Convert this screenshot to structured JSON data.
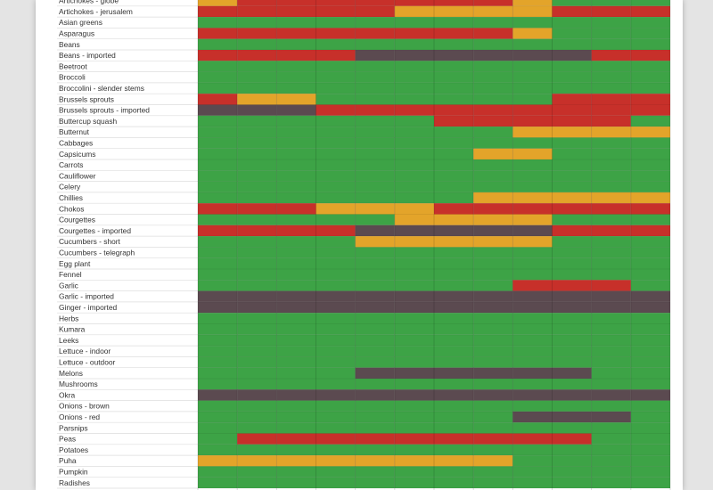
{
  "chart_data": {
    "type": "heatmap",
    "title": "",
    "columns": 12,
    "colors": {
      "g": "#3da346",
      "y": "#e3a42a",
      "r": "#c7302a",
      "d": "#5b4a50"
    },
    "rows": [
      {
        "label": "Artichokes - globe",
        "cells": [
          "y",
          "r",
          "r",
          "r",
          "r",
          "r",
          "r",
          "r",
          "y",
          "g",
          "g",
          "g"
        ]
      },
      {
        "label": "Artichokes - jerusalem",
        "cells": [
          "r",
          "r",
          "r",
          "r",
          "r",
          "y",
          "y",
          "y",
          "y",
          "r",
          "r",
          "r"
        ]
      },
      {
        "label": "Asian greens",
        "cells": [
          "g",
          "g",
          "g",
          "g",
          "g",
          "g",
          "g",
          "g",
          "g",
          "g",
          "g",
          "g"
        ]
      },
      {
        "label": "Asparagus",
        "cells": [
          "r",
          "r",
          "r",
          "r",
          "r",
          "r",
          "r",
          "r",
          "y",
          "g",
          "g",
          "g"
        ]
      },
      {
        "label": "Beans",
        "cells": [
          "g",
          "g",
          "g",
          "g",
          "g",
          "g",
          "g",
          "g",
          "g",
          "g",
          "g",
          "g"
        ]
      },
      {
        "label": "Beans - imported",
        "cells": [
          "r",
          "r",
          "r",
          "r",
          "d",
          "d",
          "d",
          "d",
          "d",
          "d",
          "r",
          "r"
        ]
      },
      {
        "label": "Beetroot",
        "cells": [
          "g",
          "g",
          "g",
          "g",
          "g",
          "g",
          "g",
          "g",
          "g",
          "g",
          "g",
          "g"
        ]
      },
      {
        "label": "Broccoli",
        "cells": [
          "g",
          "g",
          "g",
          "g",
          "g",
          "g",
          "g",
          "g",
          "g",
          "g",
          "g",
          "g"
        ]
      },
      {
        "label": "Broccolini - slender stems",
        "cells": [
          "g",
          "g",
          "g",
          "g",
          "g",
          "g",
          "g",
          "g",
          "g",
          "g",
          "g",
          "g"
        ]
      },
      {
        "label": "Brussels sprouts",
        "cells": [
          "r",
          "y",
          "y",
          "g",
          "g",
          "g",
          "g",
          "g",
          "g",
          "r",
          "r",
          "r"
        ]
      },
      {
        "label": "Brussels sprouts - imported",
        "cells": [
          "d",
          "d",
          "d",
          "r",
          "r",
          "r",
          "r",
          "r",
          "r",
          "r",
          "r",
          "r"
        ]
      },
      {
        "label": "Buttercup squash",
        "cells": [
          "g",
          "g",
          "g",
          "g",
          "g",
          "g",
          "r",
          "r",
          "r",
          "r",
          "r",
          "g"
        ]
      },
      {
        "label": "Butternut",
        "cells": [
          "g",
          "g",
          "g",
          "g",
          "g",
          "g",
          "g",
          "g",
          "y",
          "y",
          "y",
          "y"
        ]
      },
      {
        "label": "Cabbages",
        "cells": [
          "g",
          "g",
          "g",
          "g",
          "g",
          "g",
          "g",
          "g",
          "g",
          "g",
          "g",
          "g"
        ]
      },
      {
        "label": "Capsicums",
        "cells": [
          "g",
          "g",
          "g",
          "g",
          "g",
          "g",
          "g",
          "y",
          "y",
          "g",
          "g",
          "g"
        ]
      },
      {
        "label": "Carrots",
        "cells": [
          "g",
          "g",
          "g",
          "g",
          "g",
          "g",
          "g",
          "g",
          "g",
          "g",
          "g",
          "g"
        ]
      },
      {
        "label": "Cauliflower",
        "cells": [
          "g",
          "g",
          "g",
          "g",
          "g",
          "g",
          "g",
          "g",
          "g",
          "g",
          "g",
          "g"
        ]
      },
      {
        "label": "Celery",
        "cells": [
          "g",
          "g",
          "g",
          "g",
          "g",
          "g",
          "g",
          "g",
          "g",
          "g",
          "g",
          "g"
        ]
      },
      {
        "label": "Chillies",
        "cells": [
          "g",
          "g",
          "g",
          "g",
          "g",
          "g",
          "g",
          "y",
          "y",
          "y",
          "y",
          "y"
        ]
      },
      {
        "label": "Chokos",
        "cells": [
          "r",
          "r",
          "r",
          "y",
          "y",
          "y",
          "r",
          "r",
          "r",
          "r",
          "r",
          "r"
        ]
      },
      {
        "label": "Courgettes",
        "cells": [
          "g",
          "g",
          "g",
          "g",
          "g",
          "y",
          "y",
          "y",
          "y",
          "g",
          "g",
          "g"
        ]
      },
      {
        "label": "Courgettes - imported",
        "cells": [
          "r",
          "r",
          "r",
          "r",
          "d",
          "d",
          "d",
          "d",
          "d",
          "r",
          "r",
          "r"
        ]
      },
      {
        "label": "Cucumbers - short",
        "cells": [
          "g",
          "g",
          "g",
          "g",
          "y",
          "y",
          "y",
          "y",
          "y",
          "g",
          "g",
          "g"
        ]
      },
      {
        "label": "Cucumbers - telegraph",
        "cells": [
          "g",
          "g",
          "g",
          "g",
          "g",
          "g",
          "g",
          "g",
          "g",
          "g",
          "g",
          "g"
        ]
      },
      {
        "label": "Egg plant",
        "cells": [
          "g",
          "g",
          "g",
          "g",
          "g",
          "g",
          "g",
          "g",
          "g",
          "g",
          "g",
          "g"
        ]
      },
      {
        "label": "Fennel",
        "cells": [
          "g",
          "g",
          "g",
          "g",
          "g",
          "g",
          "g",
          "g",
          "g",
          "g",
          "g",
          "g"
        ]
      },
      {
        "label": "Garlic",
        "cells": [
          "g",
          "g",
          "g",
          "g",
          "g",
          "g",
          "g",
          "g",
          "r",
          "r",
          "r",
          "g"
        ]
      },
      {
        "label": "Garlic - imported",
        "cells": [
          "d",
          "d",
          "d",
          "d",
          "d",
          "d",
          "d",
          "d",
          "d",
          "d",
          "d",
          "d"
        ]
      },
      {
        "label": "Ginger - imported",
        "cells": [
          "d",
          "d",
          "d",
          "d",
          "d",
          "d",
          "d",
          "d",
          "d",
          "d",
          "d",
          "d"
        ]
      },
      {
        "label": "Herbs",
        "cells": [
          "g",
          "g",
          "g",
          "g",
          "g",
          "g",
          "g",
          "g",
          "g",
          "g",
          "g",
          "g"
        ]
      },
      {
        "label": "Kumara",
        "cells": [
          "g",
          "g",
          "g",
          "g",
          "g",
          "g",
          "g",
          "g",
          "g",
          "g",
          "g",
          "g"
        ]
      },
      {
        "label": "Leeks",
        "cells": [
          "g",
          "g",
          "g",
          "g",
          "g",
          "g",
          "g",
          "g",
          "g",
          "g",
          "g",
          "g"
        ]
      },
      {
        "label": "Lettuce - indoor",
        "cells": [
          "g",
          "g",
          "g",
          "g",
          "g",
          "g",
          "g",
          "g",
          "g",
          "g",
          "g",
          "g"
        ]
      },
      {
        "label": "Lettuce - outdoor",
        "cells": [
          "g",
          "g",
          "g",
          "g",
          "g",
          "g",
          "g",
          "g",
          "g",
          "g",
          "g",
          "g"
        ]
      },
      {
        "label": "Melons",
        "cells": [
          "g",
          "g",
          "g",
          "g",
          "d",
          "d",
          "d",
          "d",
          "d",
          "d",
          "g",
          "g"
        ]
      },
      {
        "label": "Mushrooms",
        "cells": [
          "g",
          "g",
          "g",
          "g",
          "g",
          "g",
          "g",
          "g",
          "g",
          "g",
          "g",
          "g"
        ]
      },
      {
        "label": "Okra",
        "cells": [
          "d",
          "d",
          "d",
          "d",
          "d",
          "d",
          "d",
          "d",
          "d",
          "d",
          "d",
          "d"
        ]
      },
      {
        "label": "Onions - brown",
        "cells": [
          "g",
          "g",
          "g",
          "g",
          "g",
          "g",
          "g",
          "g",
          "g",
          "g",
          "g",
          "g"
        ]
      },
      {
        "label": "Onions - red",
        "cells": [
          "g",
          "g",
          "g",
          "g",
          "g",
          "g",
          "g",
          "g",
          "d",
          "d",
          "d",
          "g"
        ]
      },
      {
        "label": "Parsnips",
        "cells": [
          "g",
          "g",
          "g",
          "g",
          "g",
          "g",
          "g",
          "g",
          "g",
          "g",
          "g",
          "g"
        ]
      },
      {
        "label": "Peas",
        "cells": [
          "g",
          "r",
          "r",
          "r",
          "r",
          "r",
          "r",
          "r",
          "r",
          "r",
          "g",
          "g"
        ]
      },
      {
        "label": "Potatoes",
        "cells": [
          "g",
          "g",
          "g",
          "g",
          "g",
          "g",
          "g",
          "g",
          "g",
          "g",
          "g",
          "g"
        ]
      },
      {
        "label": "Puha",
        "cells": [
          "y",
          "y",
          "y",
          "y",
          "y",
          "y",
          "y",
          "y",
          "g",
          "g",
          "g",
          "g"
        ]
      },
      {
        "label": "Pumpkin",
        "cells": [
          "g",
          "g",
          "g",
          "g",
          "g",
          "g",
          "g",
          "g",
          "g",
          "g",
          "g",
          "g"
        ]
      },
      {
        "label": "Radishes",
        "cells": [
          "g",
          "g",
          "g",
          "g",
          "g",
          "g",
          "g",
          "g",
          "g",
          "g",
          "g",
          "g"
        ]
      }
    ]
  }
}
